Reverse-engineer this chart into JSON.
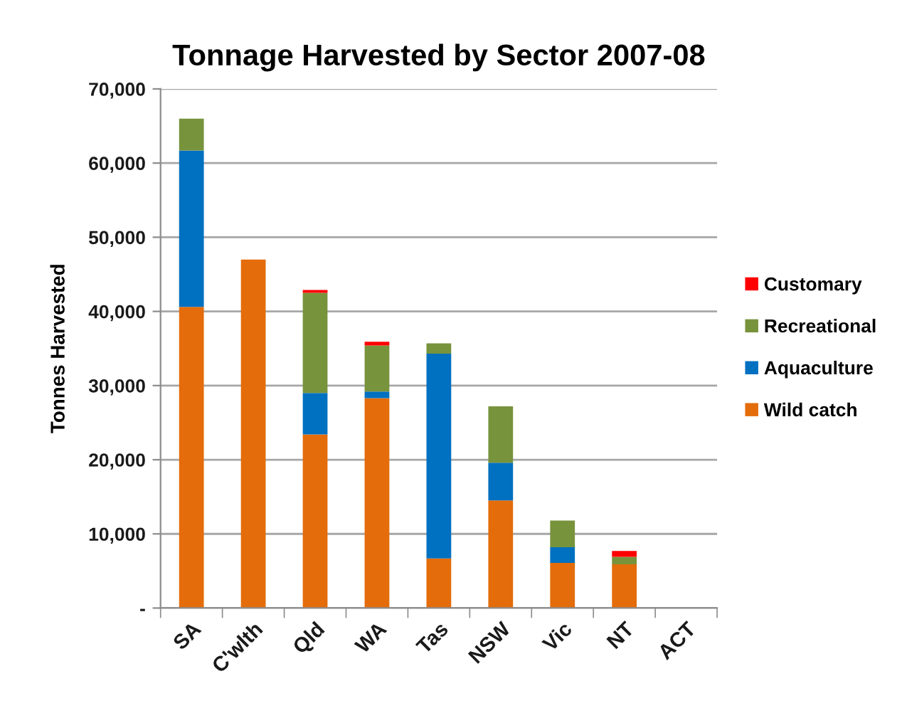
{
  "chart_data": {
    "type": "bar",
    "stacked": true,
    "title": "Tonnage Harvested by Sector 2007-08",
    "ylabel": "Tonnes Harvested",
    "categories": [
      "SA",
      "C'wlth",
      "Qld",
      "WA",
      "Tas",
      "NSW",
      "Vic",
      "NT",
      "ACT"
    ],
    "series": [
      {
        "name": "Wild catch",
        "color": "#e46c0a",
        "values": [
          40600,
          47000,
          23400,
          28300,
          6700,
          14500,
          6100,
          5900,
          null
        ]
      },
      {
        "name": "Aquaculture",
        "color": "#0070c0",
        "values": [
          21100,
          null,
          5600,
          900,
          27600,
          5100,
          2100,
          null,
          null
        ]
      },
      {
        "name": "Recreational",
        "color": "#77933c",
        "values": [
          4300,
          null,
          13500,
          6200,
          1400,
          7600,
          3600,
          1000,
          null
        ]
      },
      {
        "name": "Customary",
        "color": "#ff0000",
        "values": [
          null,
          null,
          400,
          500,
          null,
          null,
          null,
          800,
          null
        ]
      }
    ],
    "ylim": [
      0,
      70000
    ],
    "yticks": [
      {
        "value": 0,
        "label": "-"
      },
      {
        "value": 10000,
        "label": "10,000"
      },
      {
        "value": 20000,
        "label": "20,000"
      },
      {
        "value": 30000,
        "label": "30,000"
      },
      {
        "value": 40000,
        "label": "40,000"
      },
      {
        "value": 50000,
        "label": "50,000"
      },
      {
        "value": 60000,
        "label": "60,000"
      },
      {
        "value": 70000,
        "label": "70,000"
      }
    ],
    "grid": "y",
    "legend": "right"
  }
}
